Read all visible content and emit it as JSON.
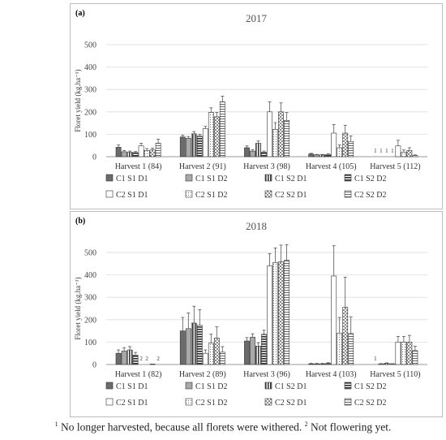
{
  "chart_data": [
    {
      "type": "bar",
      "panel_label": "(a)",
      "title": "2017",
      "ylabel": "Floret yield (kg.ha⁻¹)",
      "ylim": [
        0,
        500
      ],
      "yticks": [
        0,
        100,
        200,
        300,
        400,
        500
      ],
      "grid": true,
      "legend_position": "bottom",
      "categories": [
        "Harvest 1 (84)",
        "Harvest 2 (91)",
        "Harvest 3 (98)",
        "Harvest 4 (105)",
        "Harvest 5 (112)"
      ],
      "series": [
        {
          "name": "C1 S1 D1",
          "pattern": "dark-solid",
          "values": [
            42,
            88,
            40,
            12,
            null
          ],
          "errors": [
            10,
            8,
            8,
            3,
            0
          ]
        },
        {
          "name": "C1 S1 D2",
          "pattern": "gray-solid",
          "values": [
            22,
            82,
            25,
            8,
            null
          ],
          "errors": [
            6,
            8,
            6,
            2,
            0
          ]
        },
        {
          "name": "C1 S2 D1",
          "pattern": "vertical-stripes",
          "values": [
            20,
            102,
            60,
            8,
            null
          ],
          "errors": [
            5,
            10,
            10,
            2,
            0
          ]
        },
        {
          "name": "C1 S2 D2",
          "pattern": "horizontal-dark",
          "values": [
            18,
            92,
            20,
            10,
            null
          ],
          "errors": [
            5,
            8,
            5,
            3,
            0
          ]
        },
        {
          "name": "C2 S1 D1",
          "pattern": "white",
          "values": [
            48,
            125,
            200,
            105,
            48
          ],
          "errors": [
            12,
            10,
            45,
            38,
            25
          ]
        },
        {
          "name": "C2 S1 D2",
          "pattern": "dotted",
          "values": [
            28,
            198,
            122,
            40,
            20
          ],
          "errors": [
            8,
            20,
            30,
            12,
            10
          ]
        },
        {
          "name": "C2 S2 D1",
          "pattern": "checkered",
          "values": [
            30,
            178,
            200,
            105,
            28
          ],
          "errors": [
            8,
            20,
            40,
            35,
            12
          ]
        },
        {
          "name": "C2 S2 D2",
          "pattern": "horizontal-light",
          "values": [
            60,
            245,
            162,
            68,
            5
          ],
          "errors": [
            18,
            25,
            35,
            25,
            3
          ]
        }
      ],
      "annotations": [
        {
          "category": "Harvest 5 (112)",
          "series": [
            "C1 S1 D1",
            "C1 S1 D2",
            "C1 S2 D1",
            "C1 S2 D2"
          ],
          "text": "1"
        }
      ]
    },
    {
      "type": "bar",
      "panel_label": "(b)",
      "title": "2018",
      "ylabel": "Floret yield (kg.ha⁻¹)",
      "ylim": [
        0,
        500
      ],
      "yticks": [
        0,
        100,
        200,
        300,
        400,
        500
      ],
      "grid": true,
      "legend_position": "bottom",
      "categories": [
        "Harvest 1 (82)",
        "Harvest 2 (89)",
        "Harvest 3 (96)",
        "Harvest 4 (103)",
        "Harvest 5 (110)"
      ],
      "series": [
        {
          "name": "C1 S1 D1",
          "pattern": "dark-solid",
          "values": [
            50,
            150,
            105,
            3,
            null
          ],
          "errors": [
            15,
            60,
            15,
            2,
            0
          ]
        },
        {
          "name": "C1 S1 D2",
          "pattern": "gray-solid",
          "values": [
            60,
            160,
            122,
            3,
            3
          ],
          "errors": [
            15,
            70,
            15,
            2,
            1
          ]
        },
        {
          "name": "C1 S2 D1",
          "pattern": "vertical-stripes",
          "values": [
            65,
            185,
            82,
            3,
            5
          ],
          "errors": [
            15,
            75,
            15,
            2,
            2
          ]
        },
        {
          "name": "C1 S2 D2",
          "pattern": "horizontal-dark",
          "values": [
            42,
            175,
            135,
            5,
            3
          ],
          "errors": [
            12,
            70,
            18,
            3,
            1
          ]
        },
        {
          "name": "C2 S1 D1",
          "pattern": "white",
          "values": [
            null,
            50,
            440,
            395,
            100
          ],
          "errors": [
            0,
            15,
            55,
            135,
            25
          ]
        },
        {
          "name": "C2 S1 D2",
          "pattern": "dotted",
          "values": [
            null,
            95,
            455,
            140,
            100
          ],
          "errors": [
            0,
            40,
            65,
            70,
            25
          ]
        },
        {
          "name": "C2 S2 D1",
          "pattern": "checkered",
          "values": [
            2,
            118,
            458,
            255,
            100
          ],
          "errors": [
            0,
            50,
            75,
            135,
            30
          ]
        },
        {
          "name": "C2 S2 D2",
          "pattern": "horizontal-light",
          "values": [
            null,
            55,
            465,
            138,
            62
          ],
          "errors": [
            0,
            25,
            70,
            75,
            20
          ]
        }
      ],
      "annotations": [
        {
          "category": "Harvest 1 (82)",
          "series": [
            "C2 S1 D1",
            "C2 S1 D2"
          ],
          "text": "2"
        },
        {
          "category": "Harvest 1 (82)",
          "series": [
            "C2 S2 D2"
          ],
          "text": "2"
        },
        {
          "category": "Harvest 5 (110)",
          "series": [
            "C1 S1 D1"
          ],
          "text": "1"
        }
      ]
    }
  ],
  "footnote": {
    "mark1": "1",
    "text1": " No longer harvested, because all florets were withered. ",
    "mark2": "2",
    "text2": " Not flowering yet."
  }
}
